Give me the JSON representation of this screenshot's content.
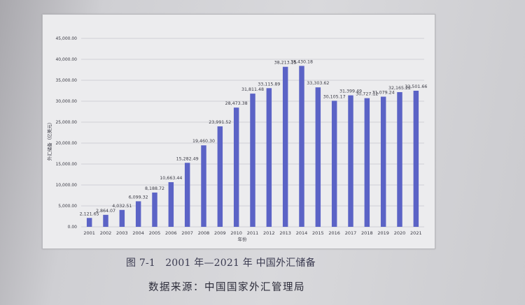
{
  "colors": {
    "bar": "#5b63c6",
    "grid": "#c9c9cf",
    "text": "#3a3a44"
  },
  "chart_data": {
    "type": "bar",
    "categories": [
      "2001",
      "2002",
      "2003",
      "2004",
      "2005",
      "2006",
      "2007",
      "2008",
      "2009",
      "2010",
      "2011",
      "2012",
      "2013",
      "2014",
      "2015",
      "2016",
      "2017",
      "2018",
      "2019",
      "2020",
      "2021"
    ],
    "values": [
      2121.65,
      2864.07,
      4032.51,
      6099.32,
      8188.72,
      10663.44,
      15282.49,
      19460.3,
      23991.52,
      28473.38,
      31811.48,
      33115.89,
      38213.15,
      38430.18,
      33303.62,
      30105.17,
      31399.49,
      30727.12,
      31079.24,
      32165.22,
      32501.66
    ],
    "data_labels": [
      "2,121.65",
      "2,864.07",
      "4,032.51",
      "6,099.32",
      "8,188.72",
      "10,663.44",
      "15,282.49",
      "19,460.30",
      "23,991.52",
      "28,473.38",
      "31,811.48",
      "33,115.89",
      "38,213.15",
      "38,430.18",
      "33,303.62",
      "30,105.17",
      "31,399.49",
      "30,727.12",
      "31,079.24",
      "32,165.22",
      "32,501.66"
    ],
    "y_ticks": [
      0,
      5000,
      10000,
      15000,
      20000,
      25000,
      30000,
      35000,
      40000,
      45000
    ],
    "y_tick_labels": [
      "0.00",
      "5,000.00",
      "10,000.00",
      "15,000.00",
      "20,000.00",
      "25,000.00",
      "30,000.00",
      "35,000.00",
      "40,000.00",
      "45,000.00"
    ],
    "ylim": [
      0,
      45000
    ],
    "xlabel": "年份",
    "ylabel": "外汇储备（亿美元）",
    "grid": true
  },
  "caption": "图 7-1　2001 年—2021 年 中国外汇储备",
  "source": "数据来源：中国国家外汇管理局"
}
